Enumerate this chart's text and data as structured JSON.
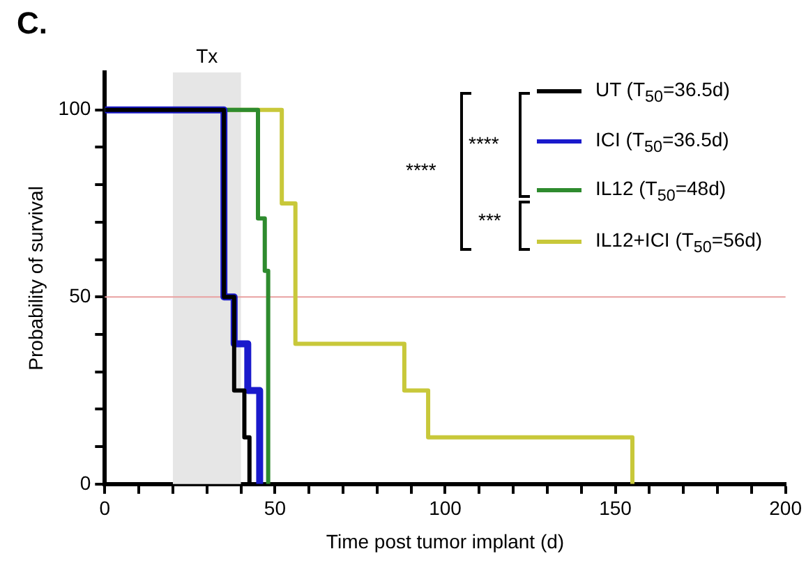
{
  "chart_data": {
    "type": "step",
    "title": "C.",
    "xlabel": "Time post tumor implant (d)",
    "ylabel": "Probability of survival",
    "xlim": [
      0,
      200
    ],
    "ylim": [
      0,
      110
    ],
    "xticks": [
      0,
      {
        "value": 10,
        "label": null
      },
      {
        "value": 20,
        "label": null
      },
      {
        "value": 30,
        "label": null
      },
      {
        "value": 40,
        "label": null
      },
      50,
      {
        "value": 60,
        "label": null
      },
      {
        "value": 70,
        "label": null
      },
      {
        "value": 80,
        "label": null
      },
      {
        "value": 90,
        "label": null
      },
      100,
      {
        "value": 110,
        "label": null
      },
      {
        "value": 120,
        "label": null
      },
      {
        "value": 130,
        "label": null
      },
      {
        "value": 140,
        "label": null
      },
      150,
      {
        "value": 160,
        "label": null
      },
      {
        "value": 170,
        "label": null
      },
      {
        "value": 180,
        "label": null
      },
      {
        "value": 190,
        "label": null
      },
      200
    ],
    "yticks": [
      0,
      {
        "value": 10,
        "label": null
      },
      {
        "value": 20,
        "label": null
      },
      {
        "value": 30,
        "label": null
      },
      {
        "value": 40,
        "label": null
      },
      50,
      {
        "value": 60,
        "label": null
      },
      {
        "value": 70,
        "label": null
      },
      {
        "value": 80,
        "label": null
      },
      {
        "value": 90,
        "label": null
      },
      100
    ],
    "series": [
      {
        "name": "UT (T$_{50}$=36.5d)",
        "color": "#000000",
        "x": [
          0,
          35,
          38,
          41,
          42.5
        ],
        "values": [
          100,
          50,
          25,
          12.5,
          0
        ]
      },
      {
        "name": "ICI (T$_{50}$=36.5d)",
        "color": "#1a1acc",
        "x": [
          0,
          35,
          38,
          42,
          45.5
        ],
        "values": [
          100,
          50,
          37.5,
          25,
          0
        ]
      },
      {
        "name": "IL12 (T$_{50}$=48d)",
        "color": "#2e8b2e",
        "x": [
          0,
          45,
          47,
          48
        ],
        "values": [
          100,
          71,
          57,
          0
        ]
      },
      {
        "name": "IL12+ICI (T$_{50}$=56d)",
        "color": "#c8c83a",
        "x": [
          0,
          52,
          56,
          88,
          95,
          155
        ],
        "values": [
          100,
          75,
          37.5,
          25,
          12.5,
          0
        ]
      }
    ],
    "bands": [
      {
        "axis": "x",
        "from": 20,
        "to": 40,
        "label": "Tx",
        "color": "#e6e6e6"
      }
    ],
    "ref_lines": [
      {
        "axis": "y",
        "value": 50,
        "color": "#e8a0a0",
        "line_style": "solid"
      }
    ],
    "annotations": [
      "****",
      "****",
      "***"
    ],
    "legend": "top right",
    "grid": false,
    "marker": "none",
    "line_style": "solid"
  }
}
